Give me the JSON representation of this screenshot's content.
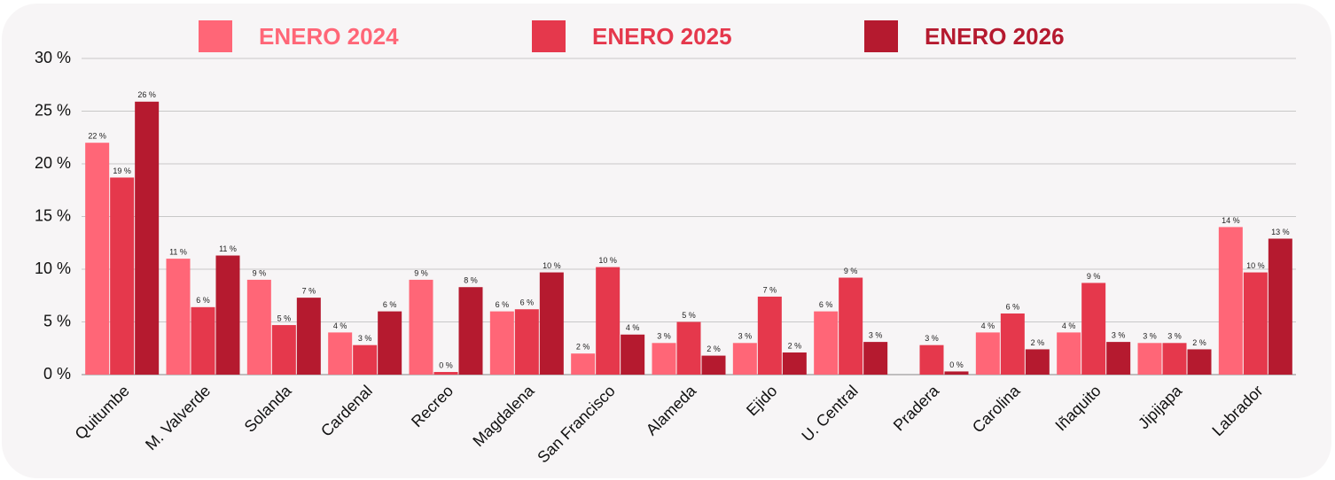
{
  "chart_data": {
    "type": "bar",
    "categories": [
      "Quitumbe",
      "M. Valverde",
      "Solanda",
      "Cardenal",
      "Recreo",
      "Magdalena",
      "San Francisco",
      "Alameda",
      "Ejido",
      "U. Central",
      "Pradera",
      "Carolina",
      "Iñaquito",
      "Jipijapa",
      "Labrador"
    ],
    "series": [
      {
        "name": "ENERO 2024",
        "color": "#ff6677",
        "values": [
          22.0,
          11.0,
          9.0,
          4.0,
          9.0,
          6.0,
          2.0,
          3.0,
          3.0,
          6.0,
          null,
          4.0,
          4.0,
          3.0,
          14.0
        ],
        "value_labels": [
          "22 %",
          "11 %",
          "9 %",
          "4 %",
          "9 %",
          "6 %",
          "2 %",
          "3 %",
          "3 %",
          "6 %",
          null,
          "4 %",
          "4 %",
          "3 %",
          "14 %"
        ]
      },
      {
        "name": "ENERO 2025",
        "color": "#e5384c",
        "values": [
          18.7,
          6.4,
          4.7,
          2.8,
          0.25,
          6.2,
          10.2,
          5.0,
          7.4,
          9.2,
          2.8,
          5.8,
          8.7,
          3.0,
          9.7
        ],
        "value_labels": [
          "19 %",
          "6 %",
          "5 %",
          "3 %",
          "0 %",
          "6 %",
          "10 %",
          "5 %",
          "7 %",
          "9 %",
          "3 %",
          "6 %",
          "9 %",
          "3 %",
          "10 %"
        ]
      },
      {
        "name": "ENERO 2026",
        "color": "#b51a2f",
        "values": [
          25.9,
          11.3,
          7.3,
          6.0,
          8.3,
          9.7,
          3.8,
          1.8,
          2.1,
          3.1,
          0.3,
          2.4,
          3.1,
          2.4,
          12.9
        ],
        "value_labels": [
          "26 %",
          "11 %",
          "7 %",
          "6 %",
          "8 %",
          "10 %",
          "4 %",
          "2 %",
          "2 %",
          "3 %",
          "0 %",
          "2 %",
          "3 %",
          "2 %",
          "13 %"
        ]
      }
    ],
    "ylim": [
      0,
      30
    ],
    "yticks": [
      {
        "value": 0,
        "label": "0 %"
      },
      {
        "value": 5,
        "label": "5 %"
      },
      {
        "value": 10,
        "label": "10 %"
      },
      {
        "value": 15,
        "label": "15 %"
      },
      {
        "value": 20,
        "label": "20 %"
      },
      {
        "value": 25,
        "label": "25 %"
      },
      {
        "value": 30,
        "label": "30 %"
      }
    ],
    "grid": true,
    "legend": "top"
  }
}
